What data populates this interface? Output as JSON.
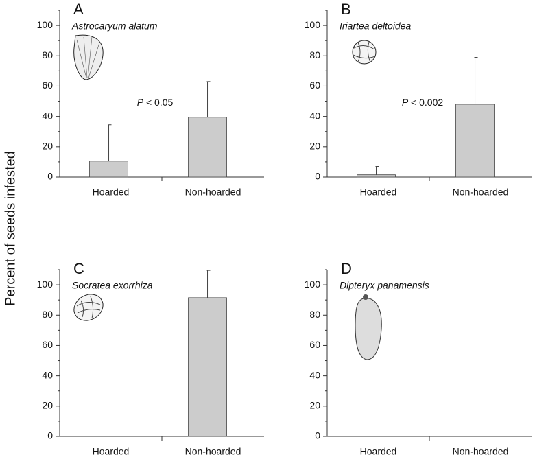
{
  "ylabel": "Percent of seeds infested",
  "chart_data": [
    {
      "type": "bar",
      "panel": "A",
      "subtitle": "Astrocaryum alatum",
      "categories": [
        "Hoarded",
        "Non-hoarded"
      ],
      "values": [
        10.5,
        39.5
      ],
      "errors": [
        24,
        23.5
      ],
      "color": "#cccccc",
      "ylim": [
        0,
        110
      ],
      "yticks": [
        0,
        20,
        40,
        60,
        80,
        100
      ],
      "yminor": [
        10,
        30,
        50,
        70,
        90,
        110
      ],
      "annotation": "P < 0.05"
    },
    {
      "type": "bar",
      "panel": "B",
      "subtitle": "Iriartea deltoidea",
      "categories": [
        "Hoarded",
        "Non-hoarded"
      ],
      "values": [
        1.5,
        48
      ],
      "errors": [
        5.5,
        31
      ],
      "color": "#cccccc",
      "ylim": [
        0,
        110
      ],
      "yticks": [
        0,
        20,
        40,
        60,
        80,
        100
      ],
      "yminor": [
        10,
        30,
        50,
        70,
        90,
        110
      ],
      "annotation": "P < 0.002"
    },
    {
      "type": "bar",
      "panel": "C",
      "subtitle": "Socratea exorrhiza",
      "categories": [
        "Hoarded",
        "Non-hoarded"
      ],
      "values": [
        0,
        91.5
      ],
      "errors": [
        null,
        18
      ],
      "color": "#cccccc",
      "ylim": [
        0,
        110
      ],
      "yticks": [
        0,
        20,
        40,
        60,
        80,
        100
      ],
      "yminor": [
        10,
        30,
        50,
        70,
        90,
        110
      ]
    },
    {
      "type": "bar",
      "panel": "D",
      "subtitle": "Dipteryx panamensis",
      "categories": [
        "Hoarded",
        "Non-hoarded"
      ],
      "values": [
        0,
        0
      ],
      "errors": [
        null,
        null
      ],
      "color": "#cccccc",
      "ylim": [
        0,
        110
      ],
      "yticks": [
        0,
        20,
        40,
        60,
        80,
        100
      ],
      "yminor": [
        10,
        30,
        50,
        70,
        90,
        110
      ]
    }
  ]
}
